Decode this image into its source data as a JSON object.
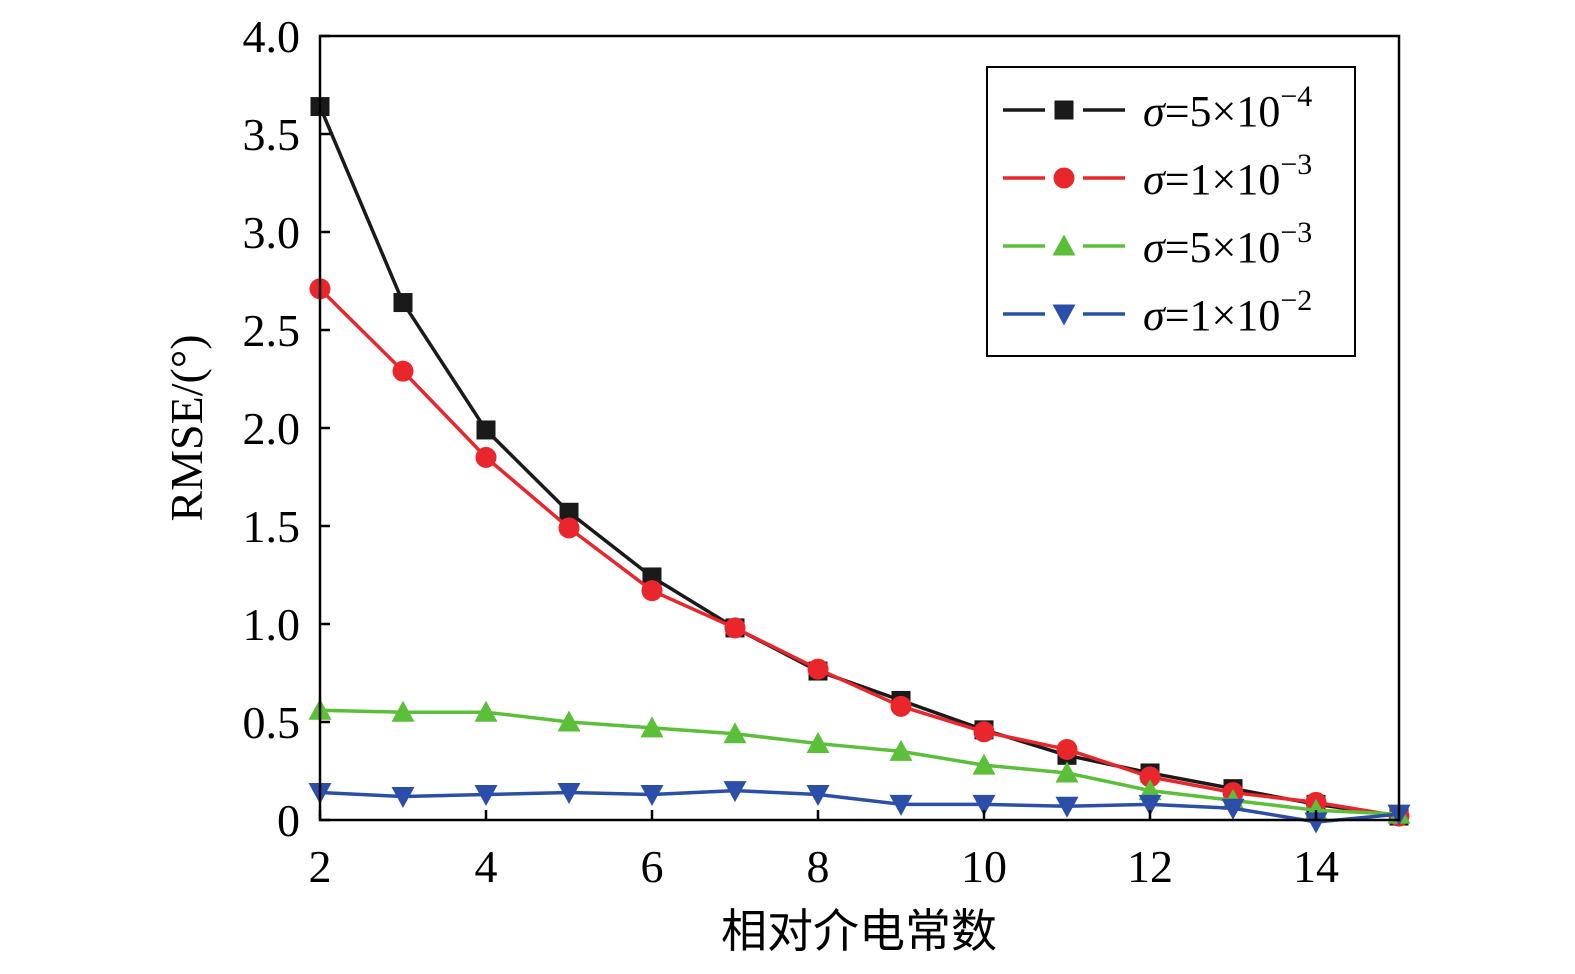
{
  "chart_data": {
    "type": "line",
    "xlabel": "相对介电常数",
    "ylabel": "RMSE/(°)",
    "xlim": [
      2,
      15
    ],
    "ylim": [
      0,
      4.0
    ],
    "x_ticks": [
      "2",
      "4",
      "6",
      "8",
      "10",
      "12",
      "14"
    ],
    "y_ticks": [
      "0",
      "0.5",
      "1.0",
      "1.5",
      "2.0",
      "2.5",
      "3.0",
      "3.5",
      "4.0"
    ],
    "legend_position": "top-right",
    "grid": false,
    "x": [
      2,
      3,
      4,
      5,
      6,
      7,
      8,
      9,
      10,
      11,
      12,
      13,
      14,
      15
    ],
    "series": [
      {
        "name": "σ=5×10⁻⁴",
        "legend": {
          "prefix": "σ",
          "eq": "=5×10",
          "exp": "−4"
        },
        "color": "#1a1a1a",
        "marker": "square",
        "values": [
          3.64,
          2.64,
          1.99,
          1.57,
          1.24,
          0.98,
          0.76,
          0.61,
          0.46,
          0.33,
          0.24,
          0.16,
          0.08,
          0.02
        ]
      },
      {
        "name": "σ=1×10⁻³",
        "legend": {
          "prefix": "σ",
          "eq": "=1×10",
          "exp": "−3"
        },
        "color": "#e8262c",
        "marker": "circle",
        "values": [
          2.71,
          2.29,
          1.85,
          1.49,
          1.17,
          0.98,
          0.77,
          0.58,
          0.45,
          0.36,
          0.22,
          0.14,
          0.09,
          0.02
        ]
      },
      {
        "name": "σ=5×10⁻³",
        "legend": {
          "prefix": "σ",
          "eq": "=5×10",
          "exp": "−3"
        },
        "color": "#5bbf3a",
        "marker": "triangle-up",
        "values": [
          0.56,
          0.55,
          0.55,
          0.5,
          0.47,
          0.44,
          0.39,
          0.35,
          0.28,
          0.24,
          0.15,
          0.1,
          0.05,
          0.03
        ]
      },
      {
        "name": "σ=1×10⁻²",
        "legend": {
          "prefix": "σ",
          "eq": "=1×10",
          "exp": "−2"
        },
        "color": "#2b4fa8",
        "marker": "triangle-down",
        "values": [
          0.14,
          0.12,
          0.13,
          0.14,
          0.13,
          0.15,
          0.13,
          0.08,
          0.08,
          0.07,
          0.08,
          0.06,
          -0.01,
          0.03
        ]
      }
    ]
  }
}
